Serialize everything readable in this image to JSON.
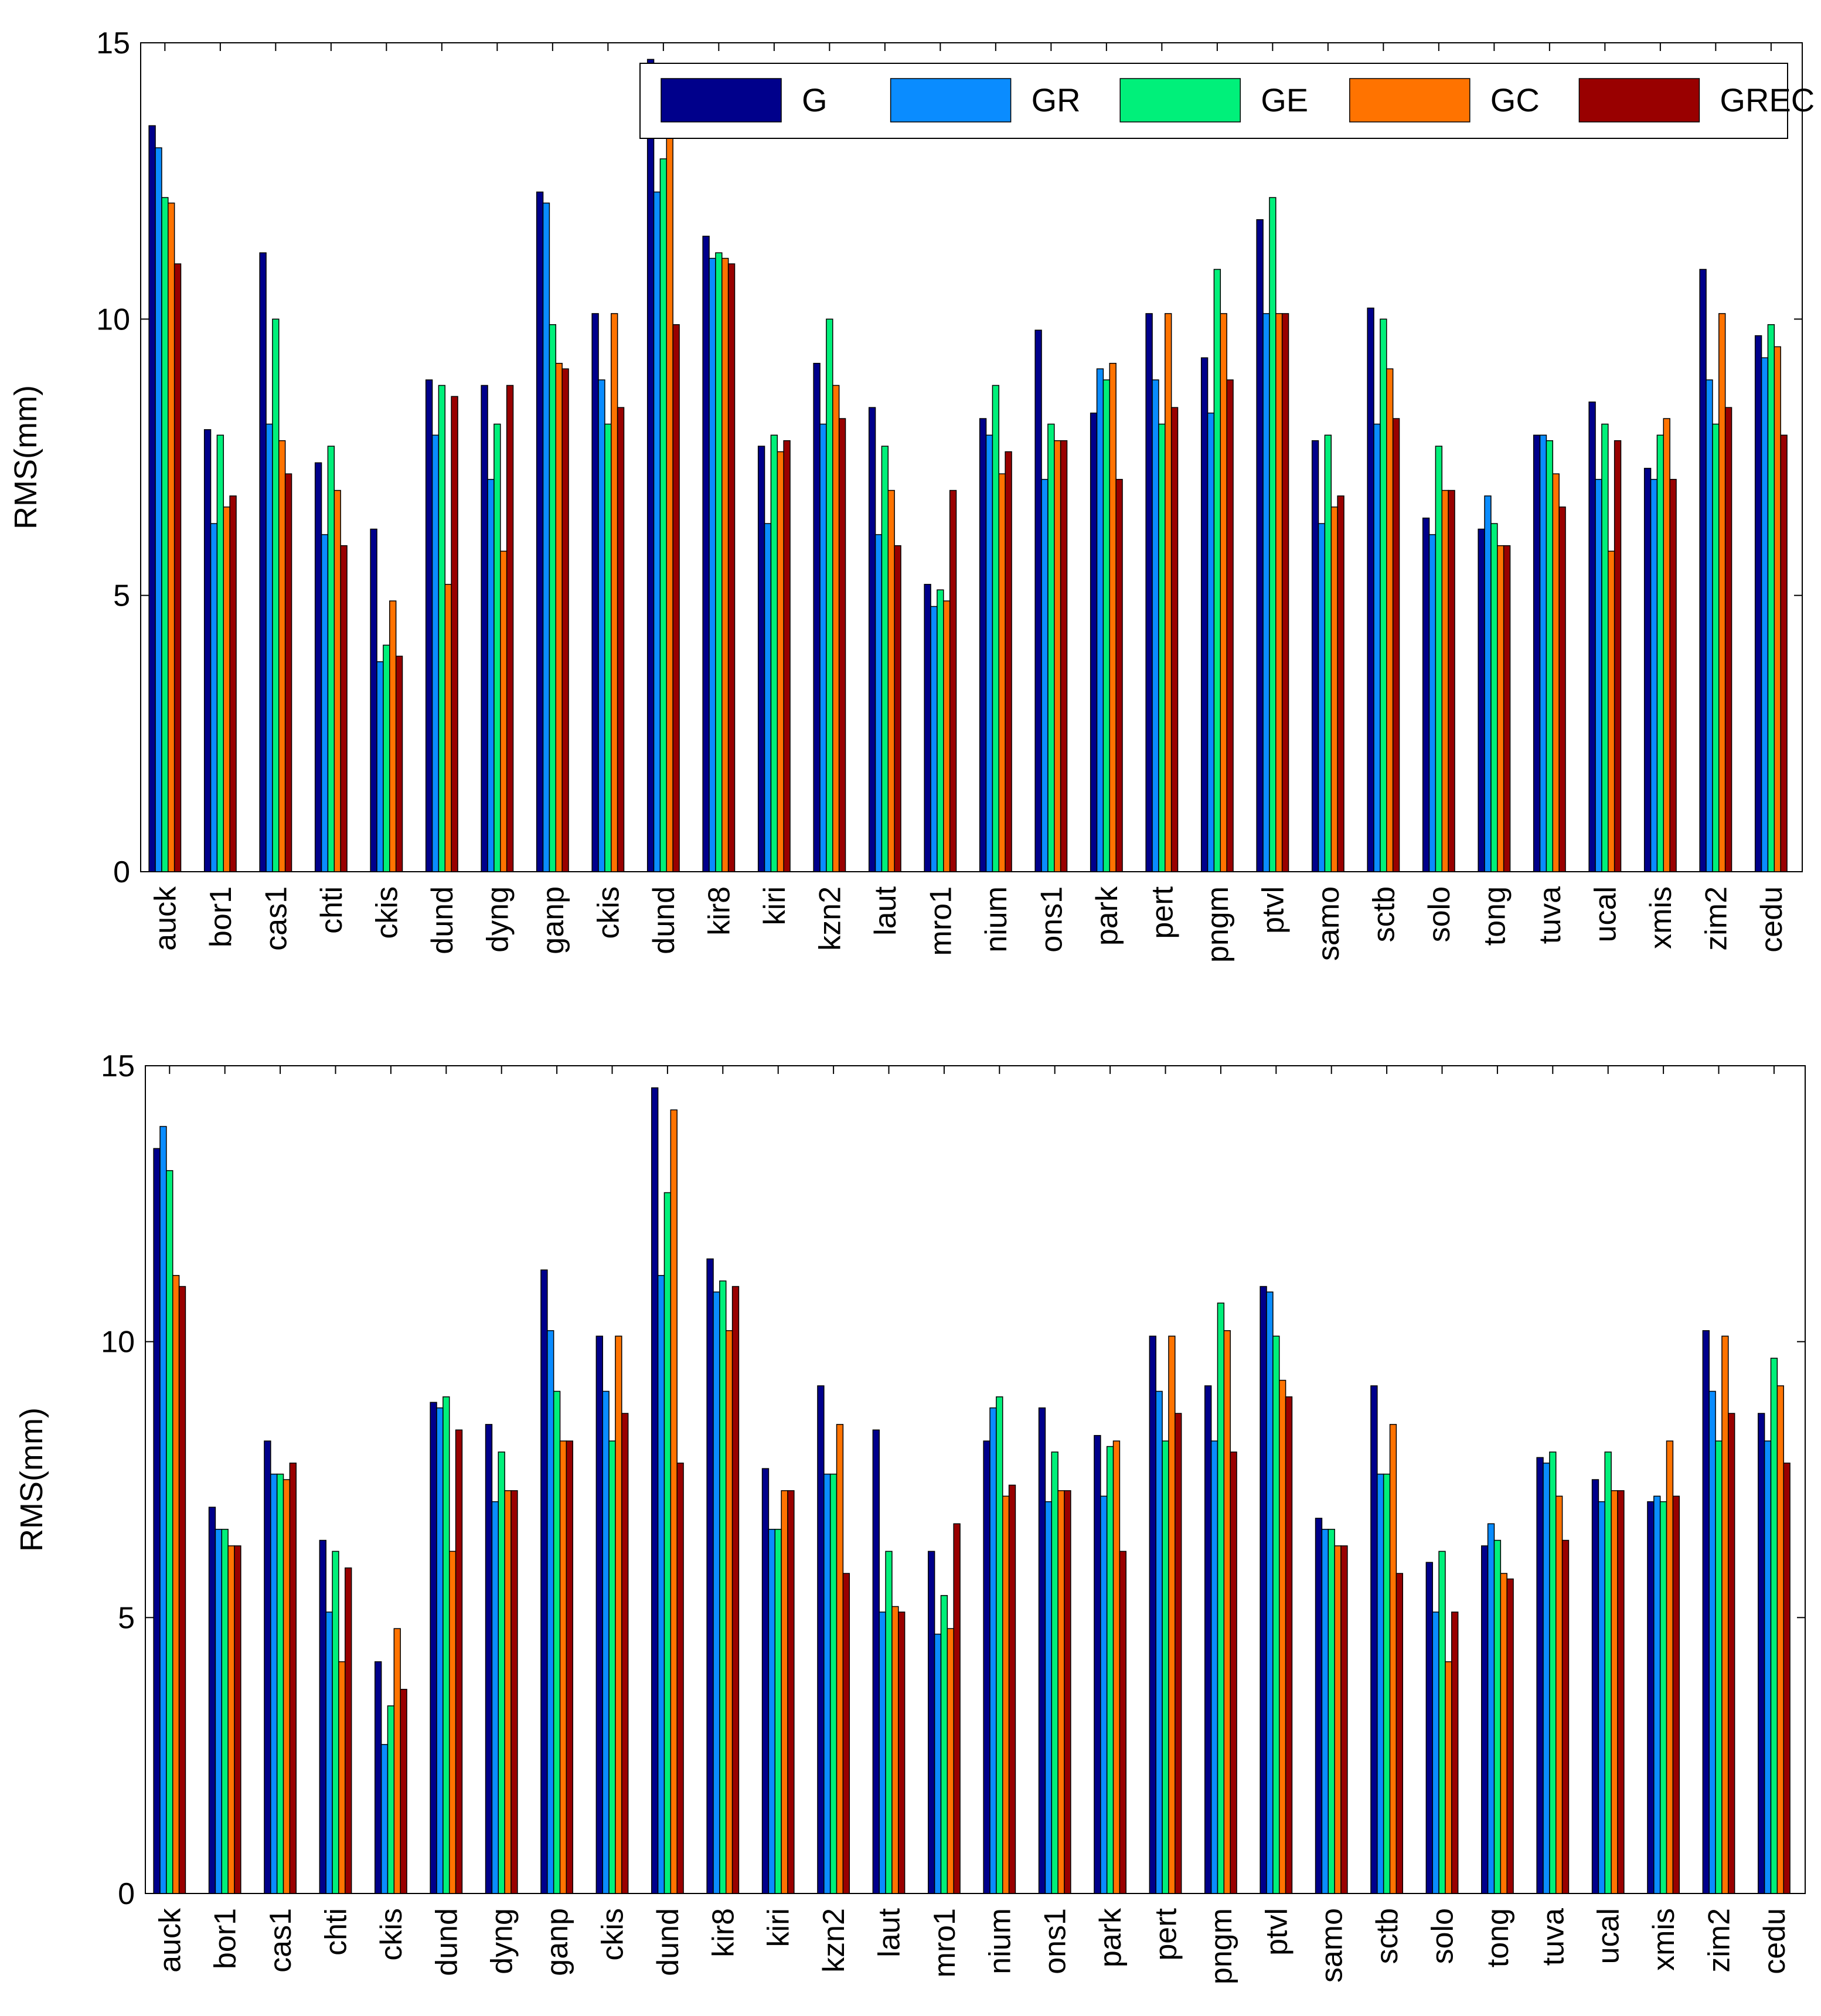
{
  "series_style": [
    {
      "name": "G",
      "color": "#00008B"
    },
    {
      "name": "GR",
      "color": "#0A8CFF"
    },
    {
      "name": "GE",
      "color": "#00F07A"
    },
    {
      "name": "GC",
      "color": "#FF7300"
    },
    {
      "name": "GREC",
      "color": "#990000"
    }
  ],
  "chart_data": [
    {
      "type": "bar",
      "ylabel": "RMS(mm)",
      "xlabel": "",
      "ylim": [
        0,
        15
      ],
      "yticks": [
        0,
        5,
        10,
        15
      ],
      "legend": {
        "position": "top-right",
        "entries": [
          "G",
          "GR",
          "GE",
          "GC",
          "GREC"
        ]
      },
      "categories": [
        "auck",
        "bor1",
        "cas1",
        "chti",
        "ckis",
        "dund",
        "dyng",
        "ganp",
        "ckis",
        "dund",
        "kir8",
        "kiri",
        "kzn2",
        "laut",
        "mro1",
        "nium",
        "ons1",
        "park",
        "pert",
        "pngm",
        "ptvl",
        "samo",
        "sctb",
        "solo",
        "tong",
        "tuva",
        "ucal",
        "xmis",
        "zim2",
        "cedu"
      ],
      "series": [
        {
          "name": "G",
          "values": [
            13.5,
            8.0,
            11.2,
            7.4,
            6.2,
            8.9,
            8.8,
            12.3,
            10.1,
            14.7,
            11.5,
            7.7,
            9.2,
            8.4,
            5.2,
            8.2,
            9.8,
            8.3,
            10.1,
            9.3,
            11.8,
            7.8,
            10.2,
            6.4,
            6.2,
            7.9,
            8.5,
            7.3,
            10.9,
            9.7
          ]
        },
        {
          "name": "GR",
          "values": [
            13.1,
            6.3,
            8.1,
            6.1,
            3.8,
            7.9,
            7.1,
            12.1,
            8.9,
            12.3,
            11.1,
            6.3,
            8.1,
            6.1,
            4.8,
            7.9,
            7.1,
            9.1,
            8.9,
            8.3,
            10.1,
            6.3,
            8.1,
            6.1,
            6.8,
            7.9,
            7.1,
            7.1,
            8.9,
            9.3
          ]
        },
        {
          "name": "GE",
          "values": [
            12.2,
            7.9,
            10.0,
            7.7,
            4.1,
            8.8,
            8.1,
            9.9,
            8.1,
            12.9,
            11.2,
            7.9,
            10.0,
            7.7,
            5.1,
            8.8,
            8.1,
            8.9,
            8.1,
            10.9,
            12.2,
            7.9,
            10.0,
            7.7,
            6.3,
            7.8,
            8.1,
            7.9,
            8.1,
            9.9
          ]
        },
        {
          "name": "GC",
          "values": [
            12.1,
            6.6,
            7.8,
            6.9,
            4.9,
            5.2,
            5.8,
            9.2,
            10.1,
            13.5,
            11.1,
            7.6,
            8.8,
            6.9,
            4.9,
            7.2,
            7.8,
            9.2,
            10.1,
            10.1,
            10.1,
            6.6,
            9.1,
            6.9,
            5.9,
            7.2,
            5.8,
            8.2,
            10.1,
            9.5
          ]
        },
        {
          "name": "GREC",
          "values": [
            11.0,
            6.8,
            7.2,
            5.9,
            3.9,
            8.6,
            8.8,
            9.1,
            8.4,
            9.9,
            11.0,
            7.8,
            8.2,
            5.9,
            6.9,
            7.6,
            7.8,
            7.1,
            8.4,
            8.9,
            10.1,
            6.8,
            8.2,
            6.9,
            5.9,
            6.6,
            7.8,
            7.1,
            8.4,
            7.9
          ]
        }
      ]
    },
    {
      "type": "bar",
      "ylabel": "RMS(mm)",
      "xlabel": "",
      "ylim": [
        0,
        15
      ],
      "yticks": [
        0,
        5,
        10,
        15
      ],
      "categories": [
        "auck",
        "bor1",
        "cas1",
        "chti",
        "ckis",
        "dund",
        "dyng",
        "ganp",
        "ckis",
        "dund",
        "kir8",
        "kiri",
        "kzn2",
        "laut",
        "mro1",
        "nium",
        "ons1",
        "park",
        "pert",
        "pngm",
        "ptvl",
        "samo",
        "sctb",
        "solo",
        "tong",
        "tuva",
        "ucal",
        "xmis",
        "zim2",
        "cedu"
      ],
      "series": [
        {
          "name": "G",
          "values": [
            13.5,
            7.0,
            8.2,
            6.4,
            4.2,
            8.9,
            8.5,
            11.3,
            10.1,
            14.6,
            11.5,
            7.7,
            9.2,
            8.4,
            6.2,
            8.2,
            8.8,
            8.3,
            10.1,
            9.2,
            11.0,
            6.8,
            9.2,
            6.0,
            6.3,
            7.9,
            7.5,
            7.1,
            10.2,
            8.7
          ]
        },
        {
          "name": "GR",
          "values": [
            13.9,
            6.6,
            7.6,
            5.1,
            2.7,
            8.8,
            7.1,
            10.2,
            9.1,
            11.2,
            10.9,
            6.6,
            7.6,
            5.1,
            4.7,
            8.8,
            7.1,
            7.2,
            9.1,
            8.2,
            10.9,
            6.6,
            7.6,
            5.1,
            6.7,
            7.8,
            7.1,
            7.2,
            9.1,
            8.2
          ]
        },
        {
          "name": "GE",
          "values": [
            13.1,
            6.6,
            7.6,
            6.2,
            3.4,
            9.0,
            8.0,
            9.1,
            8.2,
            12.7,
            11.1,
            6.6,
            7.6,
            6.2,
            5.4,
            9.0,
            8.0,
            8.1,
            8.2,
            10.7,
            10.1,
            6.6,
            7.6,
            6.2,
            6.4,
            8.0,
            8.0,
            7.1,
            8.2,
            9.7
          ]
        },
        {
          "name": "GC",
          "values": [
            11.2,
            6.3,
            7.5,
            4.2,
            4.8,
            6.2,
            7.3,
            8.2,
            10.1,
            14.2,
            10.2,
            7.3,
            8.5,
            5.2,
            4.8,
            7.2,
            7.3,
            8.2,
            10.1,
            10.2,
            9.3,
            6.3,
            8.5,
            4.2,
            5.8,
            7.2,
            7.3,
            8.2,
            10.1,
            9.2
          ]
        },
        {
          "name": "GREC",
          "values": [
            11.0,
            6.3,
            7.8,
            5.9,
            3.7,
            8.4,
            7.3,
            8.2,
            8.7,
            7.8,
            11.0,
            7.3,
            5.8,
            5.1,
            6.7,
            7.4,
            7.3,
            6.2,
            8.7,
            8.0,
            9.0,
            6.3,
            5.8,
            5.1,
            5.7,
            6.4,
            7.3,
            7.2,
            8.7,
            7.8
          ]
        }
      ]
    }
  ]
}
